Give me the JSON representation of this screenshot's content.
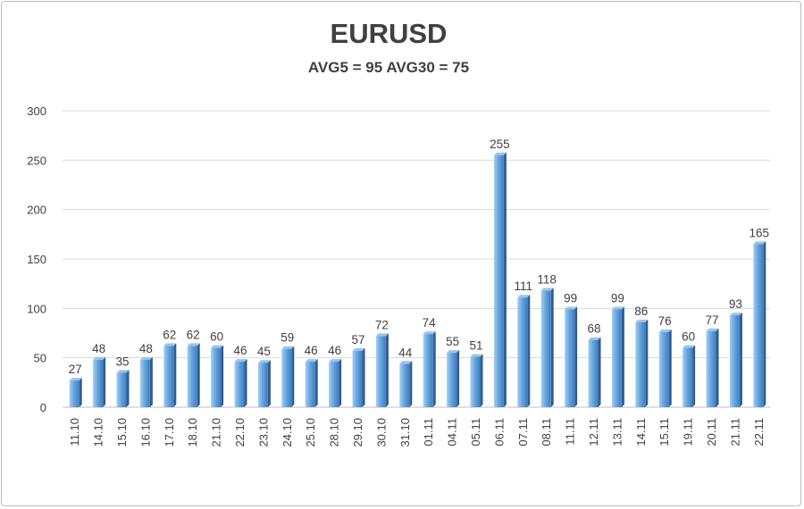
{
  "chart_data": {
    "type": "bar",
    "title": "EURUSD",
    "subtitle": "AVG5 = 95 AVG30 = 75",
    "xlabel": "",
    "ylabel": "",
    "ylim": [
      0,
      300
    ],
    "yticks": [
      0,
      50,
      100,
      150,
      200,
      250,
      300
    ],
    "grid": true,
    "legend": "none",
    "bar_color": "#5b9bd5",
    "categories": [
      "11.10",
      "14.10",
      "15.10",
      "16.10",
      "17.10",
      "18.10",
      "21.10",
      "22.10",
      "23.10",
      "24.10",
      "25.10",
      "28.10",
      "29.10",
      "30.10",
      "31.10",
      "01.11",
      "04.11",
      "05.11",
      "06.11",
      "07.11",
      "08.11",
      "11.11",
      "12.11",
      "13.11",
      "14.11",
      "15.11",
      "19.11",
      "20.11",
      "21.11",
      "22.11"
    ],
    "values": [
      27,
      48,
      35,
      48,
      62,
      62,
      60,
      46,
      45,
      59,
      46,
      46,
      57,
      72,
      44,
      74,
      55,
      51,
      255,
      111,
      118,
      99,
      68,
      99,
      86,
      76,
      60,
      77,
      93,
      165
    ]
  }
}
